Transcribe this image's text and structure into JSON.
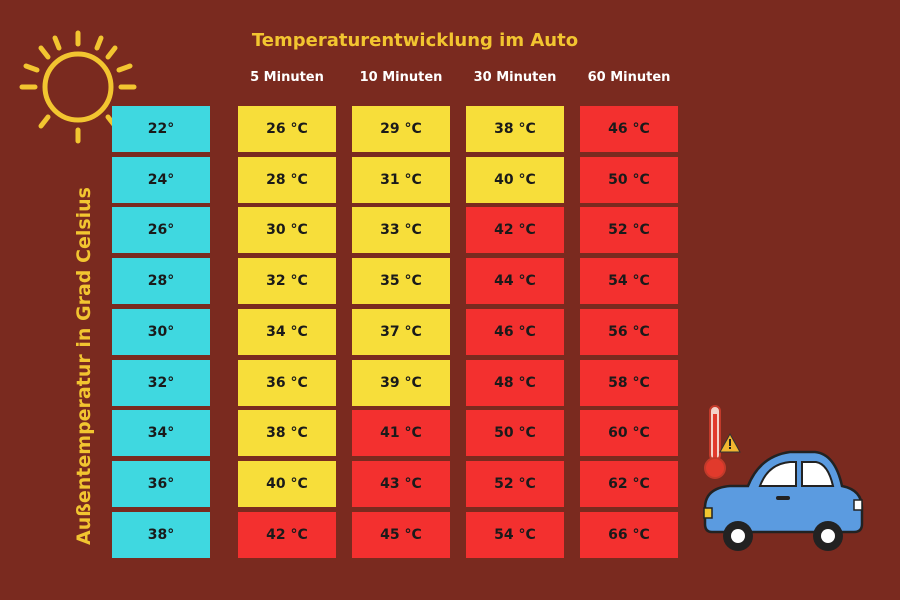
{
  "chart_data": {
    "type": "table",
    "title": "Temperaturentwicklung im Auto",
    "ylabel": "Außentemperatur in Grad Celsius",
    "columns": [
      "5 Minuten",
      "10 Minuten",
      "30 Minuten",
      "60 Minuten"
    ],
    "rows": [
      {
        "outside": "22°",
        "values": [
          "26 °C",
          "29 °C",
          "38 °C",
          "46 °C"
        ]
      },
      {
        "outside": "24°",
        "values": [
          "28 °C",
          "31 °C",
          "40 °C",
          "50 °C"
        ]
      },
      {
        "outside": "26°",
        "values": [
          "30 °C",
          "33 °C",
          "42 °C",
          "52 °C"
        ]
      },
      {
        "outside": "28°",
        "values": [
          "32 °C",
          "35 °C",
          "44 °C",
          "54 °C"
        ]
      },
      {
        "outside": "30°",
        "values": [
          "34 °C",
          "37 °C",
          "46 °C",
          "56 °C"
        ]
      },
      {
        "outside": "32°",
        "values": [
          "36 °C",
          "39 °C",
          "48 °C",
          "58 °C"
        ]
      },
      {
        "outside": "34°",
        "values": [
          "38 °C",
          "41 °C",
          "50 °C",
          "60 °C"
        ]
      },
      {
        "outside": "36°",
        "values": [
          "40 °C",
          "43 °C",
          "52 °C",
          "62 °C"
        ]
      },
      {
        "outside": "38°",
        "values": [
          "42 °C",
          "45 °C",
          "54 °C",
          "66 °C"
        ]
      }
    ],
    "cell_colors": [
      [
        "yellow",
        "yellow",
        "yellow",
        "red"
      ],
      [
        "yellow",
        "yellow",
        "yellow",
        "red"
      ],
      [
        "yellow",
        "yellow",
        "red",
        "red"
      ],
      [
        "yellow",
        "yellow",
        "red",
        "red"
      ],
      [
        "yellow",
        "yellow",
        "red",
        "red"
      ],
      [
        "yellow",
        "yellow",
        "red",
        "red"
      ],
      [
        "yellow",
        "red",
        "red",
        "red"
      ],
      [
        "yellow",
        "red",
        "red",
        "red"
      ],
      [
        "red",
        "red",
        "red",
        "red"
      ]
    ]
  },
  "colors": {
    "background": "#7a2a1f",
    "outside_cell": "#3fd8e0",
    "yellow_cell": "#f7de3a",
    "red_cell": "#f3302f",
    "title": "#f2c530",
    "sun": "#f2c530",
    "car_body": "#5b9be0"
  },
  "icons": [
    "sun-icon",
    "thermometer-icon",
    "warning-icon",
    "car-icon"
  ]
}
